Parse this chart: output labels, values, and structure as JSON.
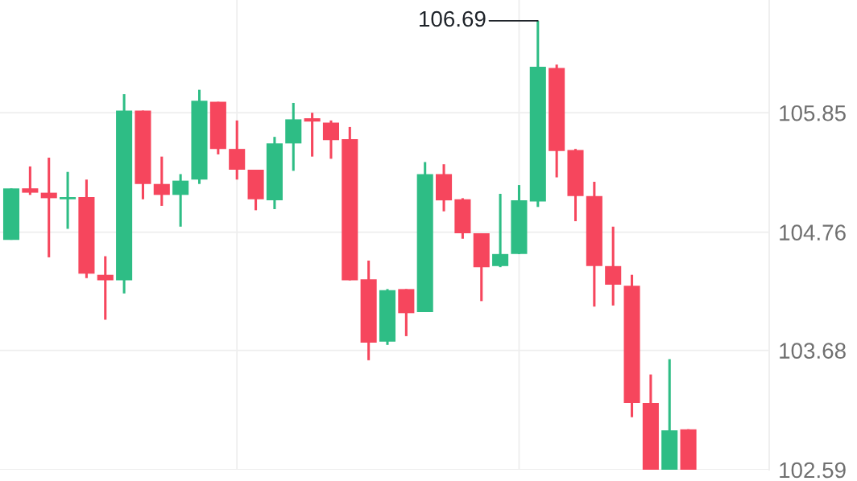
{
  "chart_data": {
    "type": "candlestick",
    "categories": [
      null,
      null,
      null,
      null,
      null,
      null,
      null,
      null,
      null,
      null,
      null,
      null,
      null,
      null,
      null,
      null,
      null,
      null,
      null,
      null,
      null,
      null,
      null,
      null,
      null,
      null,
      null,
      null,
      null,
      null,
      null,
      null,
      null,
      null,
      null,
      null,
      null
    ],
    "ohlc": [
      [
        104.69,
        105.16,
        104.69,
        105.16
      ],
      [
        105.16,
        105.36,
        105.1,
        105.12
      ],
      [
        105.12,
        105.44,
        104.53,
        105.07
      ],
      [
        105.06,
        105.31,
        104.79,
        105.08
      ],
      [
        105.08,
        105.24,
        104.34,
        104.38
      ],
      [
        104.37,
        104.54,
        103.96,
        104.32
      ],
      [
        104.32,
        106.02,
        104.2,
        105.87
      ],
      [
        105.87,
        105.87,
        105.06,
        105.2
      ],
      [
        105.2,
        105.45,
        105.0,
        105.1
      ],
      [
        105.1,
        105.29,
        104.81,
        105.23
      ],
      [
        105.24,
        106.06,
        105.2,
        105.96
      ],
      [
        105.95,
        105.95,
        105.47,
        105.52
      ],
      [
        105.52,
        105.78,
        105.24,
        105.33
      ],
      [
        105.33,
        105.33,
        104.96,
        105.06
      ],
      [
        105.05,
        105.63,
        104.97,
        105.57
      ],
      [
        105.57,
        105.94,
        105.32,
        105.79
      ],
      [
        105.8,
        105.85,
        105.45,
        105.77
      ],
      [
        105.76,
        105.78,
        105.43,
        105.6
      ],
      [
        105.61,
        105.72,
        104.32,
        104.32
      ],
      [
        104.33,
        104.5,
        103.59,
        103.75
      ],
      [
        103.76,
        104.24,
        103.73,
        104.23
      ],
      [
        104.24,
        104.24,
        103.81,
        104.02
      ],
      [
        104.03,
        105.4,
        104.03,
        105.29
      ],
      [
        105.29,
        105.38,
        104.95,
        105.05
      ],
      [
        105.06,
        105.07,
        104.7,
        104.75
      ],
      [
        104.75,
        104.75,
        104.13,
        104.44
      ],
      [
        104.45,
        105.11,
        104.44,
        104.56
      ],
      [
        104.56,
        105.19,
        104.56,
        105.05
      ],
      [
        105.04,
        106.69,
        104.99,
        106.27
      ],
      [
        106.26,
        106.29,
        105.26,
        105.5
      ],
      [
        105.51,
        105.52,
        104.86,
        105.09
      ],
      [
        105.09,
        105.22,
        104.08,
        104.45
      ],
      [
        104.45,
        104.81,
        104.09,
        104.28
      ],
      [
        104.27,
        104.37,
        103.07,
        103.2
      ],
      [
        103.2,
        103.46,
        102.59,
        102.59
      ],
      [
        102.59,
        103.6,
        102.59,
        102.95
      ],
      [
        102.96,
        102.96,
        102.59,
        102.59
      ]
    ],
    "colors": [
      "#2ebd85",
      "#f6465d",
      "#f6465d",
      "#2ebd85",
      "#f6465d",
      "#f6465d",
      "#2ebd85",
      "#f6465d",
      "#f6465d",
      "#2ebd85",
      "#2ebd85",
      "#f6465d",
      "#f6465d",
      "#f6465d",
      "#2ebd85",
      "#2ebd85",
      "#f6465d",
      "#f6465d",
      "#f6465d",
      "#f6465d",
      "#2ebd85",
      "#f6465d",
      "#2ebd85",
      "#f6465d",
      "#f6465d",
      "#f6465d",
      "#2ebd85",
      "#2ebd85",
      "#2ebd85",
      "#f6465d",
      "#f6465d",
      "#f6465d",
      "#f6465d",
      "#f6465d",
      "#f6465d",
      "#2ebd85",
      "#f6465d"
    ],
    "ylim": [
      102.59,
      106.88
    ],
    "yticks": [
      102.59,
      103.68,
      104.76,
      105.85
    ],
    "grid": true,
    "tick_labels": "y",
    "annotations": [
      "106.69"
    ]
  }
}
